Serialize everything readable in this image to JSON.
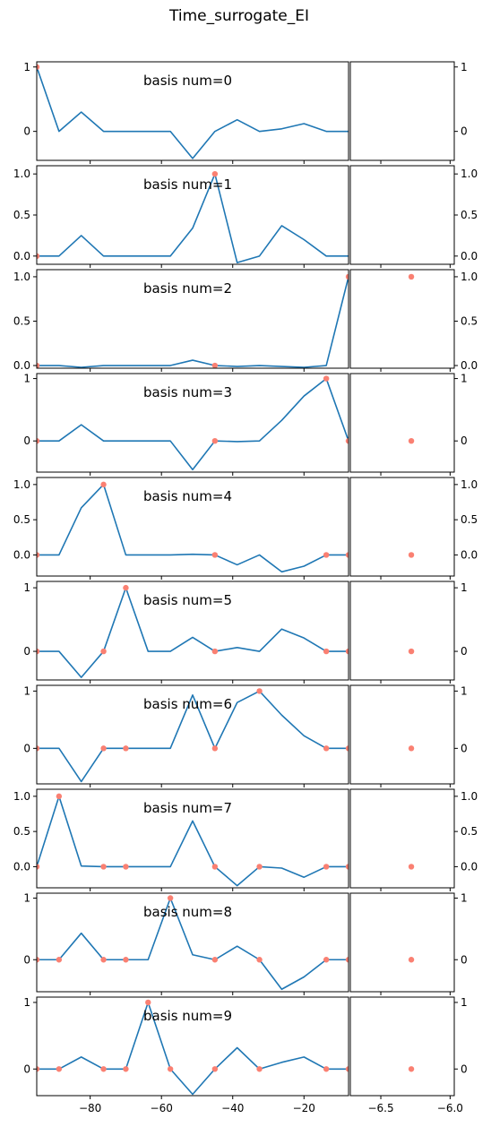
{
  "figure": {
    "title": "Time_surrogate_EI"
  },
  "chart_data": {
    "type": "line",
    "title": "Time_surrogate_EI",
    "grid": false,
    "left_xlim": [
      -95,
      -7.5
    ],
    "left_xticks": [
      -80,
      -60,
      -40,
      -20
    ],
    "left_xtick_labels": [
      "−80",
      "−60",
      "−40",
      "−20"
    ],
    "right_xlim": [
      -6.72,
      -5.97
    ],
    "right_xticks": [
      -6.5,
      -6.0
    ],
    "right_xtick_labels": [
      "−6.5",
      "−6.0"
    ],
    "x": [
      -95,
      -88.75,
      -82.5,
      -76.25,
      -70,
      -63.75,
      -57.5,
      -51.25,
      -45,
      -38.75,
      -32.5,
      -26.25,
      -20,
      -13.75,
      -7.5
    ],
    "line_color": "#1f77b4",
    "marker_color": "#fa8072",
    "panels": [
      {
        "label": "basis num=0",
        "ylim": [
          -0.45,
          1.08
        ],
        "yticks": [
          0,
          1
        ],
        "ytick_labels": [
          "0",
          "1"
        ],
        "values": [
          1.0,
          0.0,
          0.3,
          0.0,
          0.0,
          0.0,
          0.0,
          -0.42,
          0.0,
          0.18,
          0.0,
          0.04,
          0.12,
          0.0,
          0.0
        ],
        "marker_indices": [
          0
        ],
        "right_points": []
      },
      {
        "label": "basis num=1",
        "ylim": [
          -0.1,
          1.1
        ],
        "yticks": [
          0.0,
          0.5,
          1.0
        ],
        "ytick_labels": [
          "0.0",
          "0.5",
          "1.0"
        ],
        "values": [
          0.0,
          0.0,
          0.25,
          0.0,
          0.0,
          0.0,
          0.0,
          0.34,
          1.0,
          -0.08,
          0.0,
          0.37,
          0.2,
          0.0,
          0.0
        ],
        "marker_indices": [
          0,
          8
        ],
        "right_points": []
      },
      {
        "label": "basis num=2",
        "ylim": [
          -0.03,
          1.08
        ],
        "yticks": [
          0.0,
          0.5,
          1.0
        ],
        "ytick_labels": [
          "0.0",
          "0.5",
          "1.0"
        ],
        "values": [
          0.0,
          0.0,
          -0.02,
          0.0,
          0.0,
          0.0,
          0.0,
          0.06,
          0.0,
          -0.01,
          0.0,
          -0.01,
          -0.02,
          0.0,
          1.0
        ],
        "marker_indices": [
          0,
          8,
          14
        ],
        "right_points": [
          {
            "x": -6.28,
            "y": 1.0
          }
        ]
      },
      {
        "label": "basis num=3",
        "ylim": [
          -0.5,
          1.08
        ],
        "yticks": [
          0,
          1
        ],
        "ytick_labels": [
          "0",
          "1"
        ],
        "values": [
          0.0,
          0.0,
          0.26,
          0.0,
          0.0,
          0.0,
          0.0,
          -0.46,
          0.0,
          -0.01,
          0.0,
          0.33,
          0.72,
          1.0,
          0.0
        ],
        "marker_indices": [
          0,
          8,
          13,
          14
        ],
        "right_points": [
          {
            "x": -6.28,
            "y": 0.0
          }
        ]
      },
      {
        "label": "basis num=4",
        "ylim": [
          -0.3,
          1.1
        ],
        "yticks": [
          0.0,
          0.5,
          1.0
        ],
        "ytick_labels": [
          "0.0",
          "0.5",
          "1.0"
        ],
        "values": [
          0.0,
          0.0,
          0.67,
          1.0,
          0.0,
          0.0,
          0.0,
          0.01,
          0.0,
          -0.14,
          0.0,
          -0.24,
          -0.16,
          0.0,
          0.0
        ],
        "marker_indices": [
          0,
          3,
          8,
          13,
          14
        ],
        "right_points": [
          {
            "x": -6.28,
            "y": 0.0
          }
        ]
      },
      {
        "label": "basis num=5",
        "ylim": [
          -0.45,
          1.1
        ],
        "yticks": [
          0,
          1
        ],
        "ytick_labels": [
          "0",
          "1"
        ],
        "values": [
          0.0,
          0.0,
          -0.41,
          0.0,
          1.0,
          0.0,
          0.0,
          0.22,
          0.0,
          0.06,
          0.0,
          0.35,
          0.21,
          0.0,
          0.0
        ],
        "marker_indices": [
          0,
          3,
          4,
          8,
          13,
          14
        ],
        "right_points": [
          {
            "x": -6.28,
            "y": 0.0
          }
        ]
      },
      {
        "label": "basis num=6",
        "ylim": [
          -0.62,
          1.1
        ],
        "yticks": [
          0,
          1
        ],
        "ytick_labels": [
          "0",
          "1"
        ],
        "values": [
          0.0,
          0.0,
          -0.58,
          0.0,
          0.0,
          0.0,
          0.0,
          0.93,
          0.0,
          0.8,
          1.0,
          0.58,
          0.22,
          0.0,
          0.0
        ],
        "marker_indices": [
          0,
          3,
          4,
          8,
          10,
          13,
          14
        ],
        "right_points": [
          {
            "x": -6.28,
            "y": 0.0
          }
        ]
      },
      {
        "label": "basis num=7",
        "ylim": [
          -0.3,
          1.1
        ],
        "yticks": [
          0.0,
          0.5,
          1.0
        ],
        "ytick_labels": [
          "0.0",
          "0.5",
          "1.0"
        ],
        "values": [
          0.0,
          1.0,
          0.01,
          0.0,
          0.0,
          0.0,
          0.0,
          0.65,
          0.0,
          -0.27,
          0.0,
          -0.02,
          -0.15,
          0.0,
          0.0
        ],
        "marker_indices": [
          0,
          1,
          3,
          4,
          8,
          10,
          13,
          14
        ],
        "right_points": [
          {
            "x": -6.28,
            "y": 0.0
          }
        ]
      },
      {
        "label": "basis num=8",
        "ylim": [
          -0.52,
          1.08
        ],
        "yticks": [
          0,
          1
        ],
        "ytick_labels": [
          "0",
          "1"
        ],
        "values": [
          0.0,
          0.0,
          0.43,
          0.0,
          0.0,
          0.0,
          1.0,
          0.08,
          0.0,
          0.22,
          0.0,
          -0.48,
          -0.28,
          0.0,
          0.0
        ],
        "marker_indices": [
          0,
          1,
          3,
          4,
          6,
          8,
          10,
          13,
          14
        ],
        "right_points": [
          {
            "x": -6.28,
            "y": 0.0
          }
        ]
      },
      {
        "label": "basis num=9",
        "ylim": [
          -0.4,
          1.08
        ],
        "yticks": [
          0,
          1
        ],
        "ytick_labels": [
          "0",
          "1"
        ],
        "values": [
          0.0,
          0.0,
          0.18,
          0.0,
          0.0,
          1.0,
          0.0,
          -0.38,
          0.0,
          0.32,
          0.0,
          0.1,
          0.18,
          0.0,
          0.0
        ],
        "marker_indices": [
          0,
          1,
          3,
          4,
          5,
          6,
          8,
          10,
          13,
          14
        ],
        "right_points": [
          {
            "x": -6.28,
            "y": 0.0
          }
        ]
      }
    ]
  }
}
